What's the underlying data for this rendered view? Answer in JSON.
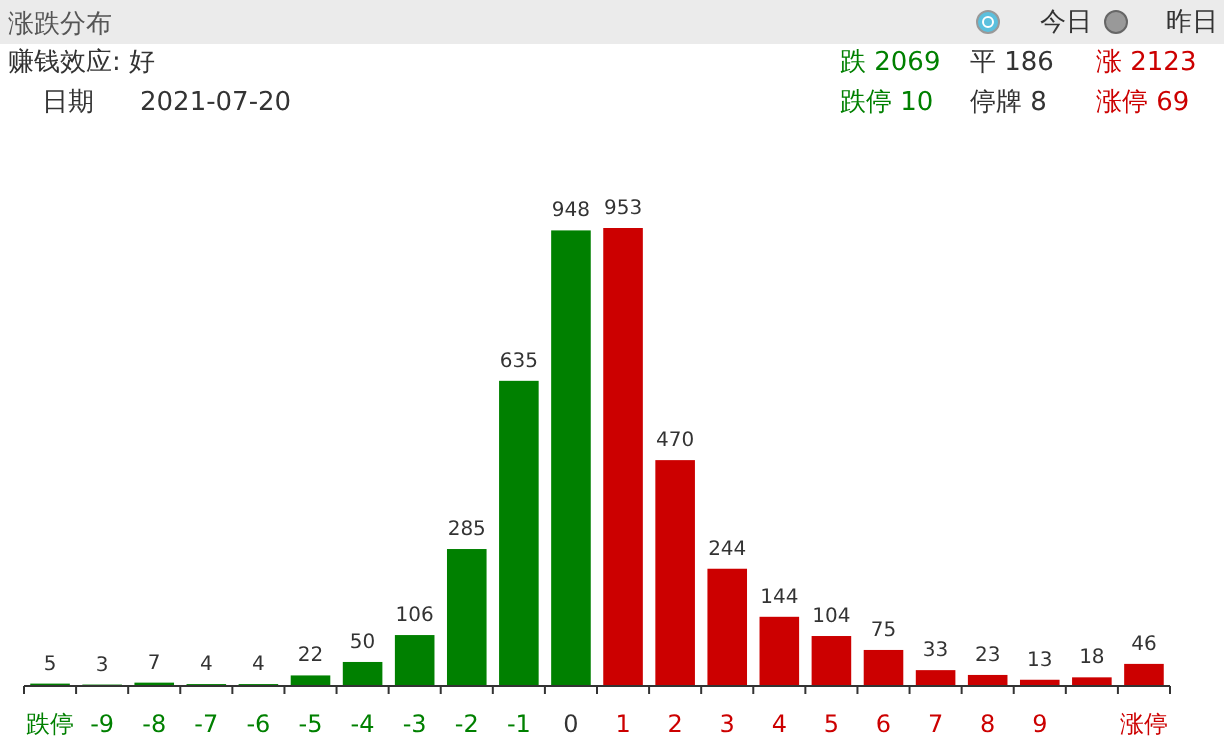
{
  "chart_data": {
    "type": "bar",
    "title": "涨跌分布",
    "categories": [
      "跌停",
      "-9",
      "-8",
      "-7",
      "-6",
      "-5",
      "-4",
      "-3",
      "-2",
      "-1",
      "0",
      "1",
      "2",
      "3",
      "4",
      "5",
      "6",
      "7",
      "8",
      "9",
      null,
      "涨停"
    ],
    "values": [
      5,
      3,
      7,
      4,
      4,
      22,
      50,
      106,
      285,
      635,
      948,
      953,
      470,
      244,
      144,
      104,
      75,
      33,
      23,
      13,
      18,
      46
    ],
    "colors": [
      "#008000",
      "#008000",
      "#008000",
      "#008000",
      "#008000",
      "#008000",
      "#008000",
      "#008000",
      "#008000",
      "#008000",
      "#008000",
      "#cc0000",
      "#cc0000",
      "#cc0000",
      "#cc0000",
      "#cc0000",
      "#cc0000",
      "#cc0000",
      "#cc0000",
      "#cc0000",
      "#cc0000",
      "#cc0000"
    ],
    "data_labels": true,
    "annotations": [
      "今日",
      "昨日",
      "赚钱效应: 好",
      "日期",
      "2021-07-20",
      "跌 2069",
      "平 186",
      "涨 2123",
      "跌停 10",
      "停牌 8",
      "涨停 69"
    ]
  }
}
